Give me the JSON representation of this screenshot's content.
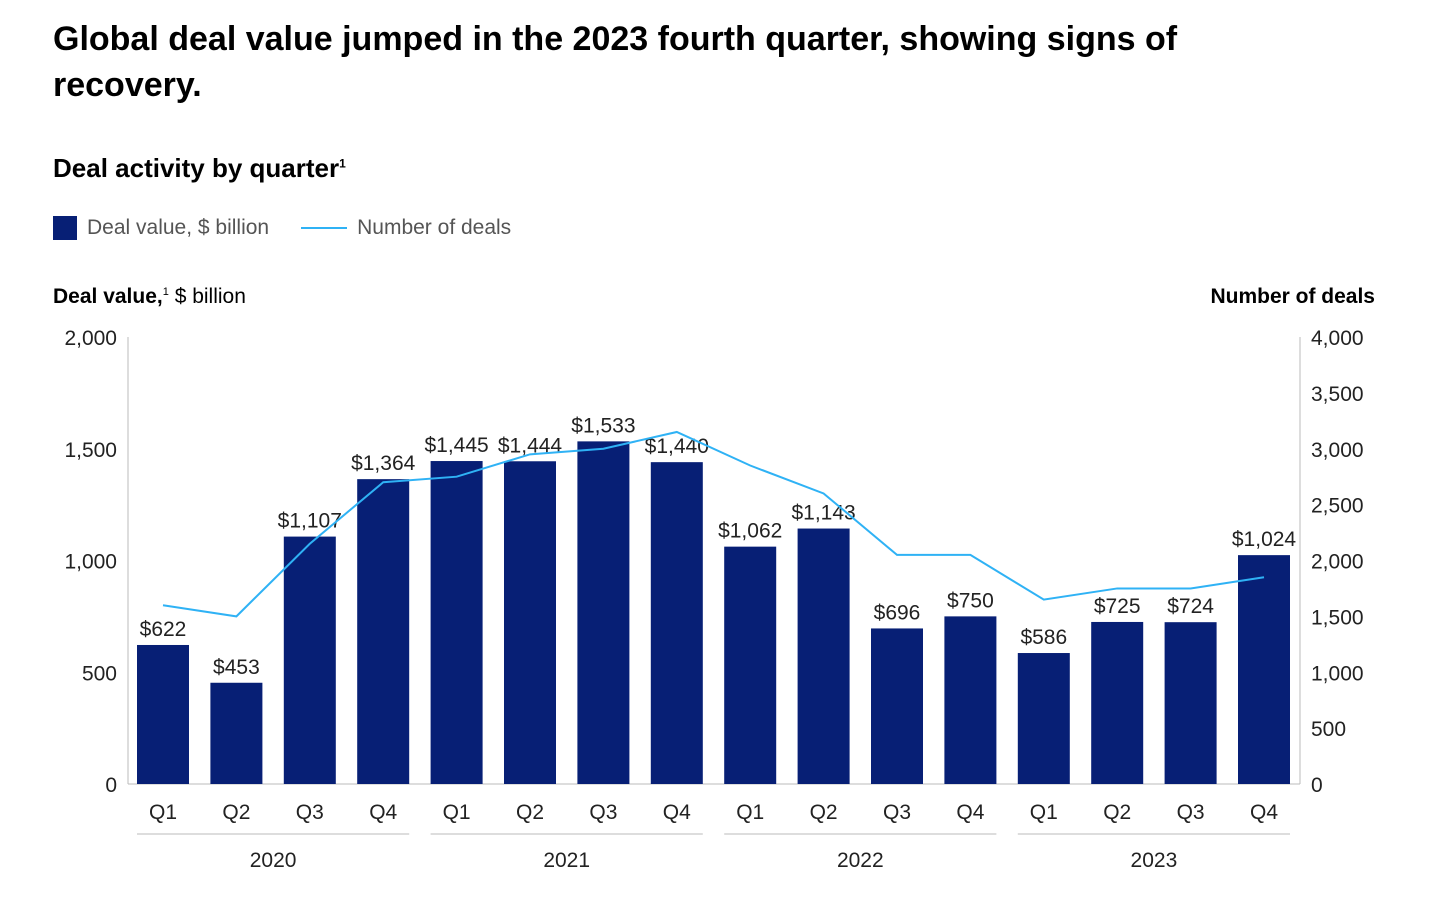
{
  "title": "Global deal value jumped in the 2023 fourth quarter, showing signs of recovery.",
  "subtitle": "Deal activity by quarter",
  "subtitle_footnote": "1",
  "colors": {
    "bar": "#071f75",
    "line": "#2fb2f5"
  },
  "chart_data": {
    "type": "bar+line",
    "legend": [
      {
        "label": "Deal value, $ billion",
        "type": "bar"
      },
      {
        "label": "Number of deals",
        "type": "line"
      }
    ],
    "legend_placement": "top-left",
    "left_axis": {
      "label_bold": "Deal value,",
      "label_footnote": "1",
      "label_rest": " $ billion",
      "range": [
        0,
        2000
      ],
      "ticks": [
        "0",
        "500",
        "1,000",
        "1,500",
        "2,000"
      ]
    },
    "right_axis": {
      "label": "Number of deals",
      "range": [
        0,
        4000
      ],
      "ticks": [
        "0",
        "500",
        "1,000",
        "1,500",
        "2,000",
        "2,500",
        "3,000",
        "3,500",
        "4,000"
      ]
    },
    "categories": [
      "Q1",
      "Q2",
      "Q3",
      "Q4",
      "Q1",
      "Q2",
      "Q3",
      "Q4",
      "Q1",
      "Q2",
      "Q3",
      "Q4",
      "Q1",
      "Q2",
      "Q3",
      "Q4"
    ],
    "years": [
      "2020",
      "2021",
      "2022",
      "2023"
    ],
    "series": [
      {
        "name": "Deal value, $ billion",
        "type": "bar",
        "values": [
          622,
          453,
          1107,
          1364,
          1445,
          1444,
          1533,
          1440,
          1062,
          1143,
          696,
          750,
          586,
          725,
          724,
          1024
        ],
        "labels": [
          "$622",
          "$453",
          "$1,107",
          "$1,364",
          "$1,445",
          "$1,444",
          "$1,533",
          "$1,440",
          "$1,062",
          "$1,143",
          "$696",
          "$750",
          "$586",
          "$725",
          "$724",
          "$1,024"
        ]
      },
      {
        "name": "Number of deals",
        "type": "line",
        "values": [
          1600,
          1500,
          2150,
          2700,
          2750,
          2950,
          3000,
          3150,
          2850,
          2600,
          2050,
          2050,
          1650,
          1750,
          1750,
          1850
        ]
      }
    ],
    "grid": false
  }
}
